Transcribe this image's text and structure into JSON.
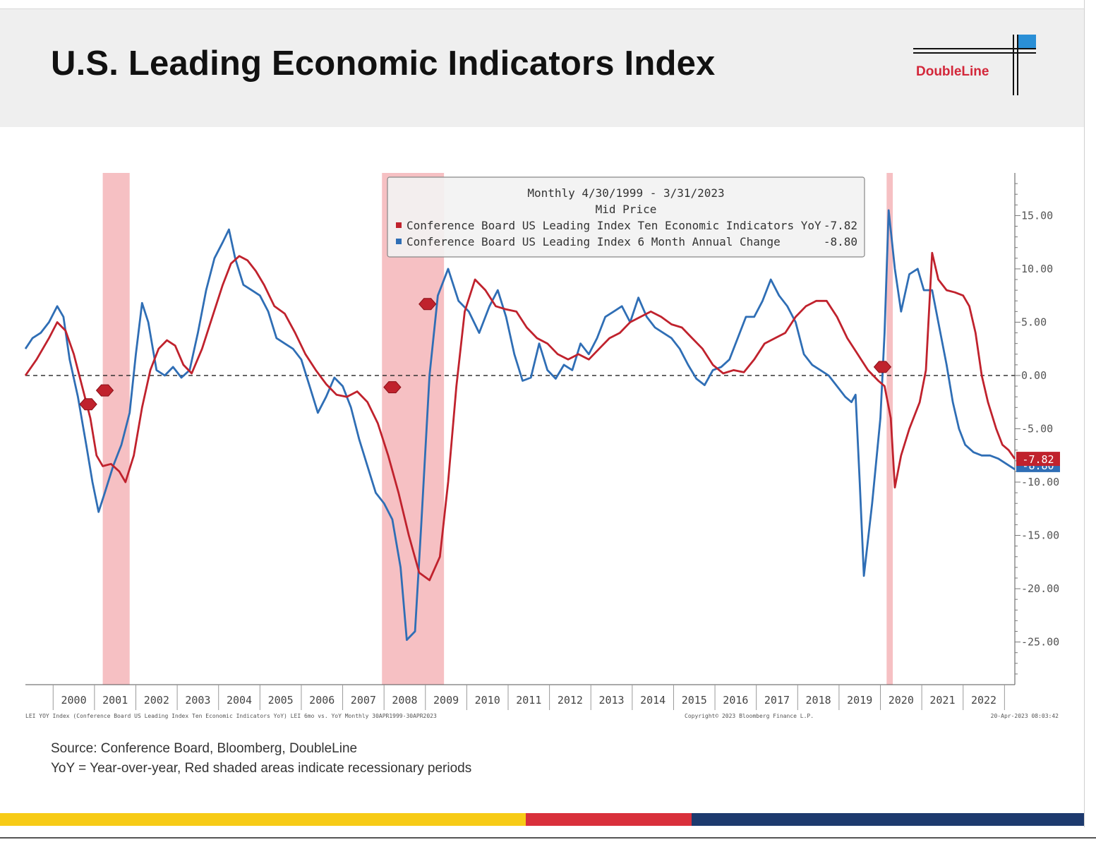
{
  "page": {
    "title": "U.S. Leading Economic Indicators Index",
    "logo_text": "DoubleLine",
    "source": "Source: Conference Board, Bloomberg, DoubleLine",
    "note": "YoY = Year-over-year, Red shaded areas indicate recessionary periods",
    "footer_left": "LEI YOY Index (Conference Board US Leading Index Ten Economic Indicators YoY) LEI 6mo vs. YoY Monthly 30APR1999-30APR2023",
    "footer_mid": "Copyright© 2023 Bloomberg Finance L.P.",
    "footer_right": "20-Apr-2023 08:03:42",
    "colors": {
      "band_yellow": "#f7cb16",
      "band_red": "#d9303b",
      "band_navy": "#1d3a6e",
      "logo_red": "#d3273a",
      "logo_blue": "#2a8fd6"
    }
  },
  "chart_data": {
    "type": "line",
    "legend": {
      "header1": "Monthly 4/30/1999 - 3/31/2023",
      "header2": "Mid Price",
      "placement": "top-center",
      "entries": [
        {
          "label": "Conference Board US Leading Index Ten Economic Indicators YoY",
          "value": "-7.82",
          "color": "#c0222d"
        },
        {
          "label": "Conference Board US Leading Index 6 Month Annual Change",
          "value": "-8.80",
          "color": "#2f6eb5"
        }
      ]
    },
    "x_range": [
      1999.33,
      2023.25
    ],
    "ylim": [
      -29,
      19
    ],
    "y_ticks": [
      15,
      10,
      5,
      0,
      -5,
      -10,
      -15,
      -20,
      -25
    ],
    "y_tick_labels": [
      "15.00",
      "10.00",
      "5.00",
      "0.00",
      "-5.00",
      "-10.00",
      "-15.00",
      "-20.00",
      "-25.00"
    ],
    "y_axis_position": "right",
    "zero_line": "dashed",
    "x_tick_labels": [
      "2000",
      "2001",
      "2002",
      "2003",
      "2004",
      "2005",
      "2006",
      "2007",
      "2008",
      "2009",
      "2010",
      "2011",
      "2012",
      "2013",
      "2014",
      "2015",
      "2016",
      "2017",
      "2018",
      "2019",
      "2020",
      "2021",
      "2022"
    ],
    "recessions": [
      [
        2001.2,
        2001.85
      ],
      [
        2007.95,
        2009.45
      ],
      [
        2020.15,
        2020.3
      ]
    ],
    "last_value_labels": [
      {
        "text": "-7.82",
        "color": "#c0222d"
      },
      {
        "text": "-8.80",
        "color": "#2f6eb5"
      }
    ],
    "series": [
      {
        "name": "Conference Board US Leading Index Ten Economic Indicators YoY",
        "color": "#c0222d",
        "points": [
          [
            1999.33,
            0.0
          ],
          [
            1999.6,
            1.5
          ],
          [
            1999.9,
            3.5
          ],
          [
            2000.1,
            5.0
          ],
          [
            2000.3,
            4.2
          ],
          [
            2000.5,
            2.0
          ],
          [
            2000.7,
            -1.0
          ],
          [
            2000.9,
            -4.0
          ],
          [
            2001.05,
            -7.5
          ],
          [
            2001.2,
            -8.5
          ],
          [
            2001.4,
            -8.3
          ],
          [
            2001.6,
            -9.0
          ],
          [
            2001.75,
            -10.0
          ],
          [
            2001.95,
            -7.5
          ],
          [
            2002.15,
            -3.0
          ],
          [
            2002.35,
            0.5
          ],
          [
            2002.55,
            2.5
          ],
          [
            2002.75,
            3.3
          ],
          [
            2002.95,
            2.8
          ],
          [
            2003.15,
            1.0
          ],
          [
            2003.35,
            0.2
          ],
          [
            2003.6,
            2.5
          ],
          [
            2003.85,
            5.5
          ],
          [
            2004.1,
            8.5
          ],
          [
            2004.3,
            10.5
          ],
          [
            2004.5,
            11.2
          ],
          [
            2004.7,
            10.8
          ],
          [
            2004.9,
            9.8
          ],
          [
            2005.1,
            8.5
          ],
          [
            2005.35,
            6.5
          ],
          [
            2005.6,
            5.8
          ],
          [
            2005.85,
            4.0
          ],
          [
            2006.1,
            2.0
          ],
          [
            2006.35,
            0.5
          ],
          [
            2006.6,
            -0.8
          ],
          [
            2006.85,
            -1.8
          ],
          [
            2007.1,
            -2.0
          ],
          [
            2007.35,
            -1.5
          ],
          [
            2007.6,
            -2.5
          ],
          [
            2007.85,
            -4.5
          ],
          [
            2008.1,
            -7.5
          ],
          [
            2008.35,
            -11.0
          ],
          [
            2008.6,
            -15.0
          ],
          [
            2008.85,
            -18.5
          ],
          [
            2009.1,
            -19.2
          ],
          [
            2009.35,
            -17.0
          ],
          [
            2009.55,
            -10.0
          ],
          [
            2009.75,
            -1.0
          ],
          [
            2009.95,
            6.0
          ],
          [
            2010.2,
            9.0
          ],
          [
            2010.45,
            8.0
          ],
          [
            2010.7,
            6.5
          ],
          [
            2010.95,
            6.2
          ],
          [
            2011.2,
            6.0
          ],
          [
            2011.45,
            4.5
          ],
          [
            2011.7,
            3.5
          ],
          [
            2011.95,
            3.0
          ],
          [
            2012.2,
            2.0
          ],
          [
            2012.45,
            1.5
          ],
          [
            2012.7,
            2.0
          ],
          [
            2012.95,
            1.5
          ],
          [
            2013.2,
            2.5
          ],
          [
            2013.45,
            3.5
          ],
          [
            2013.7,
            4.0
          ],
          [
            2013.95,
            5.0
          ],
          [
            2014.2,
            5.5
          ],
          [
            2014.45,
            6.0
          ],
          [
            2014.7,
            5.5
          ],
          [
            2014.95,
            4.8
          ],
          [
            2015.2,
            4.5
          ],
          [
            2015.45,
            3.5
          ],
          [
            2015.7,
            2.5
          ],
          [
            2015.95,
            1.0
          ],
          [
            2016.2,
            0.2
          ],
          [
            2016.45,
            0.5
          ],
          [
            2016.7,
            0.3
          ],
          [
            2016.95,
            1.5
          ],
          [
            2017.2,
            3.0
          ],
          [
            2017.45,
            3.5
          ],
          [
            2017.7,
            4.0
          ],
          [
            2017.95,
            5.5
          ],
          [
            2018.2,
            6.5
          ],
          [
            2018.45,
            7.0
          ],
          [
            2018.7,
            7.0
          ],
          [
            2018.95,
            5.5
          ],
          [
            2019.2,
            3.5
          ],
          [
            2019.45,
            2.0
          ],
          [
            2019.7,
            0.5
          ],
          [
            2019.95,
            -0.5
          ],
          [
            2020.1,
            -1.0
          ],
          [
            2020.25,
            -4.0
          ],
          [
            2020.35,
            -10.5
          ],
          [
            2020.5,
            -7.5
          ],
          [
            2020.7,
            -5.0
          ],
          [
            2020.95,
            -2.5
          ],
          [
            2021.1,
            0.5
          ],
          [
            2021.25,
            11.5
          ],
          [
            2021.4,
            9.0
          ],
          [
            2021.6,
            8.0
          ],
          [
            2021.8,
            7.8
          ],
          [
            2022.0,
            7.5
          ],
          [
            2022.15,
            6.5
          ],
          [
            2022.3,
            4.0
          ],
          [
            2022.45,
            0.0
          ],
          [
            2022.6,
            -2.5
          ],
          [
            2022.8,
            -5.0
          ],
          [
            2022.95,
            -6.5
          ],
          [
            2023.1,
            -7.0
          ],
          [
            2023.25,
            -7.82
          ]
        ]
      },
      {
        "name": "Conference Board US Leading Index 6 Month Annual Change",
        "color": "#2f6eb5",
        "points": [
          [
            1999.33,
            2.5
          ],
          [
            1999.5,
            3.5
          ],
          [
            1999.7,
            4.0
          ],
          [
            1999.9,
            5.0
          ],
          [
            2000.1,
            6.5
          ],
          [
            2000.25,
            5.5
          ],
          [
            2000.4,
            1.5
          ],
          [
            2000.6,
            -2.0
          ],
          [
            2000.8,
            -6.5
          ],
          [
            2000.95,
            -10.0
          ],
          [
            2001.1,
            -12.8
          ],
          [
            2001.25,
            -11.0
          ],
          [
            2001.45,
            -8.5
          ],
          [
            2001.65,
            -6.5
          ],
          [
            2001.85,
            -3.5
          ],
          [
            2002.0,
            2.0
          ],
          [
            2002.15,
            6.8
          ],
          [
            2002.3,
            5.0
          ],
          [
            2002.5,
            0.5
          ],
          [
            2002.7,
            0.0
          ],
          [
            2002.9,
            0.8
          ],
          [
            2003.1,
            -0.2
          ],
          [
            2003.3,
            0.5
          ],
          [
            2003.5,
            4.0
          ],
          [
            2003.7,
            8.0
          ],
          [
            2003.9,
            11.0
          ],
          [
            2004.1,
            12.5
          ],
          [
            2004.25,
            13.7
          ],
          [
            2004.4,
            11.0
          ],
          [
            2004.6,
            8.5
          ],
          [
            2004.8,
            8.0
          ],
          [
            2005.0,
            7.5
          ],
          [
            2005.2,
            6.0
          ],
          [
            2005.4,
            3.5
          ],
          [
            2005.6,
            3.0
          ],
          [
            2005.8,
            2.5
          ],
          [
            2006.0,
            1.5
          ],
          [
            2006.2,
            -1.0
          ],
          [
            2006.4,
            -3.5
          ],
          [
            2006.6,
            -2.0
          ],
          [
            2006.8,
            -0.2
          ],
          [
            2007.0,
            -1.0
          ],
          [
            2007.2,
            -3.0
          ],
          [
            2007.4,
            -6.0
          ],
          [
            2007.6,
            -8.5
          ],
          [
            2007.8,
            -11.0
          ],
          [
            2008.0,
            -12.0
          ],
          [
            2008.2,
            -13.5
          ],
          [
            2008.4,
            -18.0
          ],
          [
            2008.55,
            -24.8
          ],
          [
            2008.75,
            -24.0
          ],
          [
            2008.9,
            -14.0
          ],
          [
            2009.1,
            0.0
          ],
          [
            2009.3,
            7.5
          ],
          [
            2009.55,
            10.0
          ],
          [
            2009.8,
            7.0
          ],
          [
            2010.05,
            6.0
          ],
          [
            2010.3,
            4.0
          ],
          [
            2010.55,
            6.5
          ],
          [
            2010.75,
            8.0
          ],
          [
            2010.95,
            5.5
          ],
          [
            2011.15,
            2.0
          ],
          [
            2011.35,
            -0.5
          ],
          [
            2011.55,
            -0.2
          ],
          [
            2011.75,
            3.0
          ],
          [
            2011.95,
            0.5
          ],
          [
            2012.15,
            -0.3
          ],
          [
            2012.35,
            1.0
          ],
          [
            2012.55,
            0.5
          ],
          [
            2012.75,
            3.0
          ],
          [
            2012.95,
            2.0
          ],
          [
            2013.15,
            3.5
          ],
          [
            2013.35,
            5.5
          ],
          [
            2013.55,
            6.0
          ],
          [
            2013.75,
            6.5
          ],
          [
            2013.95,
            5.0
          ],
          [
            2014.15,
            7.3
          ],
          [
            2014.35,
            5.5
          ],
          [
            2014.55,
            4.5
          ],
          [
            2014.75,
            4.0
          ],
          [
            2014.95,
            3.5
          ],
          [
            2015.15,
            2.5
          ],
          [
            2015.35,
            1.0
          ],
          [
            2015.55,
            -0.3
          ],
          [
            2015.75,
            -0.9
          ],
          [
            2015.95,
            0.5
          ],
          [
            2016.15,
            0.8
          ],
          [
            2016.35,
            1.5
          ],
          [
            2016.55,
            3.5
          ],
          [
            2016.75,
            5.5
          ],
          [
            2016.95,
            5.5
          ],
          [
            2017.15,
            7.0
          ],
          [
            2017.35,
            9.0
          ],
          [
            2017.55,
            7.5
          ],
          [
            2017.75,
            6.5
          ],
          [
            2017.95,
            5.0
          ],
          [
            2018.15,
            2.0
          ],
          [
            2018.35,
            1.0
          ],
          [
            2018.55,
            0.5
          ],
          [
            2018.75,
            0.0
          ],
          [
            2018.95,
            -1.0
          ],
          [
            2019.15,
            -2.0
          ],
          [
            2019.3,
            -2.5
          ],
          [
            2019.4,
            -1.8
          ],
          [
            2019.5,
            -10.0
          ],
          [
            2019.6,
            -18.8
          ],
          [
            2019.8,
            -12.0
          ],
          [
            2020.0,
            -4.0
          ],
          [
            2020.1,
            4.0
          ],
          [
            2020.2,
            15.5
          ],
          [
            2020.35,
            10.0
          ],
          [
            2020.5,
            6.0
          ],
          [
            2020.7,
            9.5
          ],
          [
            2020.9,
            10.0
          ],
          [
            2021.05,
            8.0
          ],
          [
            2021.25,
            8.0
          ],
          [
            2021.45,
            4.0
          ],
          [
            2021.6,
            1.0
          ],
          [
            2021.75,
            -2.5
          ],
          [
            2021.9,
            -5.0
          ],
          [
            2022.05,
            -6.5
          ],
          [
            2022.25,
            -7.2
          ],
          [
            2022.45,
            -7.5
          ],
          [
            2022.65,
            -7.5
          ],
          [
            2022.85,
            -7.8
          ],
          [
            2023.25,
            -8.8
          ]
        ]
      }
    ]
  }
}
